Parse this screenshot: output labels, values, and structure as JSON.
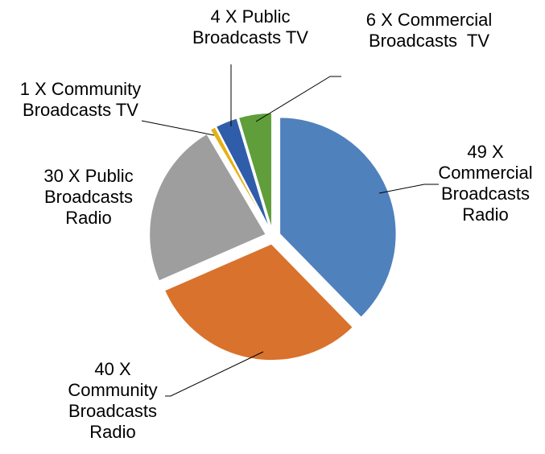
{
  "chart_data": {
    "type": "pie",
    "title": "",
    "slices": [
      {
        "name": "Commercial Broadcasts Radio",
        "value": 49,
        "label_lines": [
          "49 X",
          "Commercial",
          "Broadcasts",
          "Radio"
        ],
        "color": "#4F81BD"
      },
      {
        "name": "Community Broadcasts Radio",
        "value": 40,
        "label_lines": [
          "40 X",
          "Community",
          "Broadcasts",
          "Radio"
        ],
        "color": "#D9722D"
      },
      {
        "name": "Public Broadcasts Radio",
        "value": 30,
        "label_lines": [
          "30 X Public",
          "Broadcasts",
          "Radio"
        ],
        "color": "#9E9E9E"
      },
      {
        "name": "Community Broadcasts TV",
        "value": 1,
        "label_lines": [
          "1 X Community",
          "Broadcasts TV"
        ],
        "color": "#E8B012"
      },
      {
        "name": "Public Broadcasts TV",
        "value": 4,
        "label_lines": [
          "4 X Public",
          "Broadcasts TV"
        ],
        "color": "#2F5DAA"
      },
      {
        "name": "Commercial Broadcasts TV",
        "value": 6,
        "label_lines": [
          "6 X Commercial",
          "Broadcasts  TV"
        ],
        "color": "#5F9E3A"
      }
    ],
    "start_angle_deg": 0,
    "direction": "clockwise",
    "exploded": true,
    "legend": "none",
    "data_labels": "outside with leader lines"
  }
}
